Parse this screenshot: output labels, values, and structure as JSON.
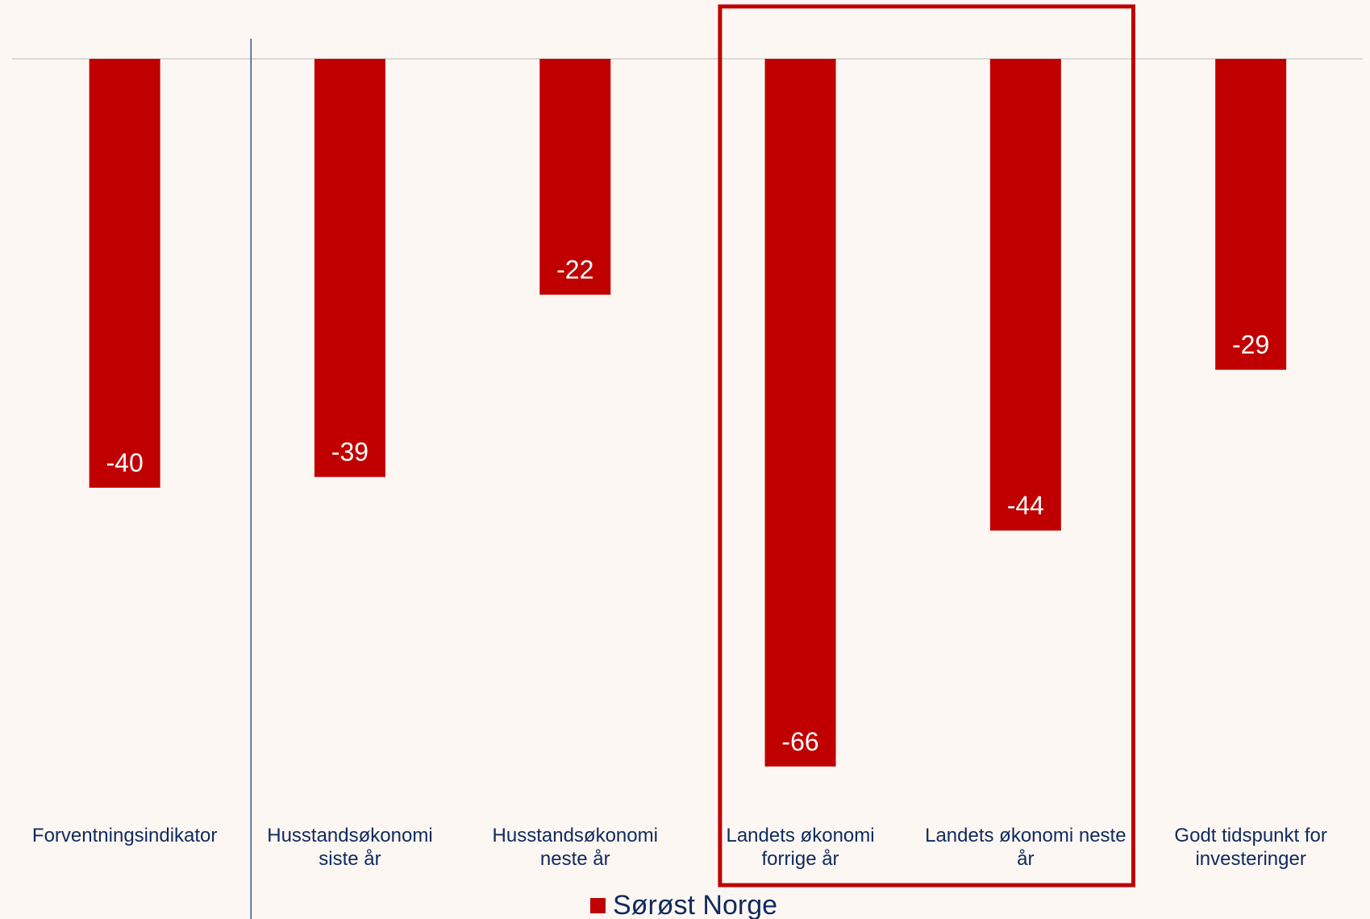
{
  "chart_data": {
    "type": "bar",
    "categories": [
      [
        "Forventningsindikator"
      ],
      [
        "Husstandsøkonomi",
        "siste år"
      ],
      [
        "Husstandsøkonomi",
        "neste år"
      ],
      [
        "Landets økonomi",
        "forrige år"
      ],
      [
        "Landets økonomi neste",
        "år"
      ],
      [
        "Godt tidspunkt for",
        "investeringer"
      ]
    ],
    "series": [
      {
        "name": "Sørøst Norge",
        "values": [
          -40,
          -39,
          -22,
          -66,
          -44,
          -29
        ],
        "color": "#c00000"
      }
    ],
    "data_labels": [
      "-40",
      "-39",
      "-22",
      "-66",
      "-44",
      "-29"
    ],
    "ylim": [
      -73,
      0
    ],
    "grid": false,
    "legend": {
      "position": "bottom",
      "label": "Sørøst Norge"
    },
    "highlight_categories": [
      3,
      4
    ],
    "highlight_color": "#c00000",
    "separator_after_category": 0,
    "colors": {
      "background": "#fdf7f3",
      "text": "#0f2a5c",
      "zero_line": "#d9d9d9",
      "separator": "#2f5597"
    }
  }
}
